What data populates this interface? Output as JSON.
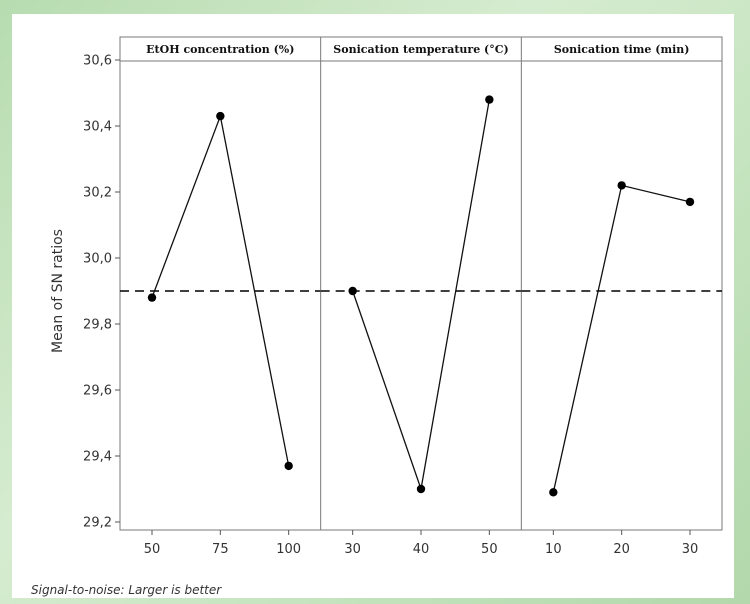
{
  "chart_data": {
    "type": "line",
    "ylabel": "Mean of SN ratios",
    "ylim": [
      29.2,
      30.6
    ],
    "yticks": [
      "29,2",
      "29,4",
      "29,6",
      "29,8",
      "30,0",
      "30,2",
      "30,4",
      "30,6"
    ],
    "reference_line": 29.9,
    "panels": [
      {
        "title": "EtOH concentration (%)",
        "categories": [
          "50",
          "75",
          "100"
        ],
        "values": [
          29.88,
          30.43,
          29.37
        ]
      },
      {
        "title": "Sonication temperature (°C)",
        "categories": [
          "30",
          "40",
          "50"
        ],
        "values": [
          29.9,
          29.3,
          30.48
        ]
      },
      {
        "title": "Sonication time (min)",
        "categories": [
          "10",
          "20",
          "30"
        ],
        "values": [
          29.29,
          30.22,
          30.17
        ]
      }
    ]
  },
  "footnote": "Signal-to-noise: Larger is better"
}
